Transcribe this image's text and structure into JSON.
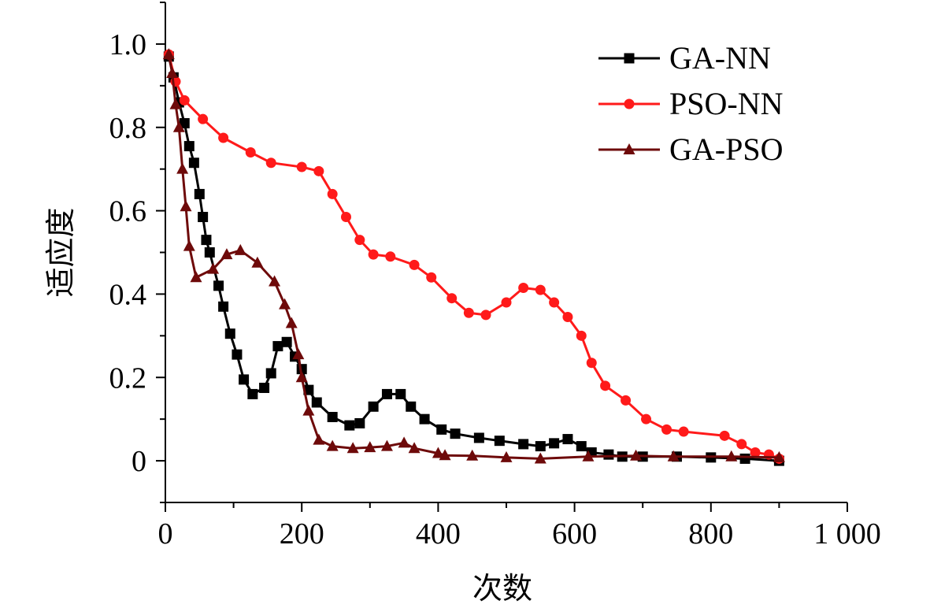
{
  "chart_data": {
    "type": "line",
    "title": "",
    "xlabel": "次数",
    "ylabel": "适应度",
    "xlim": [
      0,
      1000
    ],
    "ylim": [
      -0.1,
      1.1
    ],
    "xticks": [
      0,
      200,
      400,
      600,
      800,
      1000
    ],
    "xtick_labels": [
      "0",
      "200",
      "400",
      "600",
      "800",
      "1 000"
    ],
    "yticks": [
      0,
      0.2,
      0.4,
      0.6,
      0.8,
      1.0
    ],
    "ytick_labels": [
      "0",
      "0.2",
      "0.4",
      "0.6",
      "0.8",
      "1.0"
    ],
    "legend_position": "top-right",
    "series": [
      {
        "name": "GA-NN",
        "color": "#000000",
        "marker": "square",
        "x": [
          5,
          12,
          20,
          28,
          35,
          42,
          50,
          55,
          60,
          65,
          78,
          85,
          95,
          105,
          115,
          128,
          145,
          155,
          165,
          178,
          190,
          200,
          210,
          222,
          245,
          270,
          285,
          305,
          325,
          345,
          360,
          380,
          405,
          425,
          460,
          490,
          525,
          550,
          570,
          590,
          610,
          625,
          650,
          670,
          700,
          750,
          800,
          850,
          900
        ],
        "y": [
          0.97,
          0.92,
          0.86,
          0.81,
          0.755,
          0.715,
          0.64,
          0.585,
          0.53,
          0.5,
          0.42,
          0.37,
          0.305,
          0.255,
          0.195,
          0.16,
          0.175,
          0.21,
          0.275,
          0.285,
          0.25,
          0.22,
          0.17,
          0.14,
          0.105,
          0.085,
          0.09,
          0.13,
          0.16,
          0.16,
          0.13,
          0.1,
          0.075,
          0.065,
          0.055,
          0.048,
          0.04,
          0.035,
          0.042,
          0.052,
          0.035,
          0.02,
          0.015,
          0.01,
          0.01,
          0.01,
          0.008,
          0.005,
          0.0
        ]
      },
      {
        "name": "PSO-NN",
        "color": "#ff1a1a",
        "marker": "circle",
        "x": [
          5,
          15,
          28,
          55,
          85,
          125,
          155,
          200,
          225,
          245,
          265,
          285,
          305,
          330,
          365,
          390,
          420,
          445,
          470,
          500,
          525,
          550,
          570,
          590,
          610,
          625,
          645,
          675,
          705,
          735,
          760,
          820,
          845,
          865,
          885,
          900
        ],
        "y": [
          0.975,
          0.91,
          0.865,
          0.82,
          0.775,
          0.74,
          0.715,
          0.705,
          0.695,
          0.64,
          0.585,
          0.53,
          0.495,
          0.49,
          0.47,
          0.44,
          0.39,
          0.355,
          0.35,
          0.38,
          0.415,
          0.41,
          0.38,
          0.345,
          0.3,
          0.235,
          0.18,
          0.145,
          0.1,
          0.075,
          0.07,
          0.06,
          0.04,
          0.02,
          0.015,
          0.005
        ]
      },
      {
        "name": "GA-PSO",
        "color": "#6e0a0a",
        "marker": "triangle",
        "x": [
          5,
          10,
          15,
          20,
          25,
          30,
          35,
          45,
          70,
          90,
          110,
          135,
          160,
          175,
          185,
          195,
          200,
          210,
          225,
          245,
          275,
          300,
          325,
          350,
          365,
          400,
          410,
          450,
          500,
          550,
          620,
          690,
          745,
          830,
          900
        ],
        "y": [
          0.975,
          0.93,
          0.855,
          0.8,
          0.7,
          0.61,
          0.515,
          0.44,
          0.46,
          0.495,
          0.505,
          0.475,
          0.43,
          0.375,
          0.33,
          0.255,
          0.2,
          0.12,
          0.05,
          0.035,
          0.03,
          0.032,
          0.035,
          0.043,
          0.03,
          0.018,
          0.013,
          0.012,
          0.008,
          0.005,
          0.01,
          0.012,
          0.01,
          0.01,
          0.008
        ]
      }
    ]
  }
}
